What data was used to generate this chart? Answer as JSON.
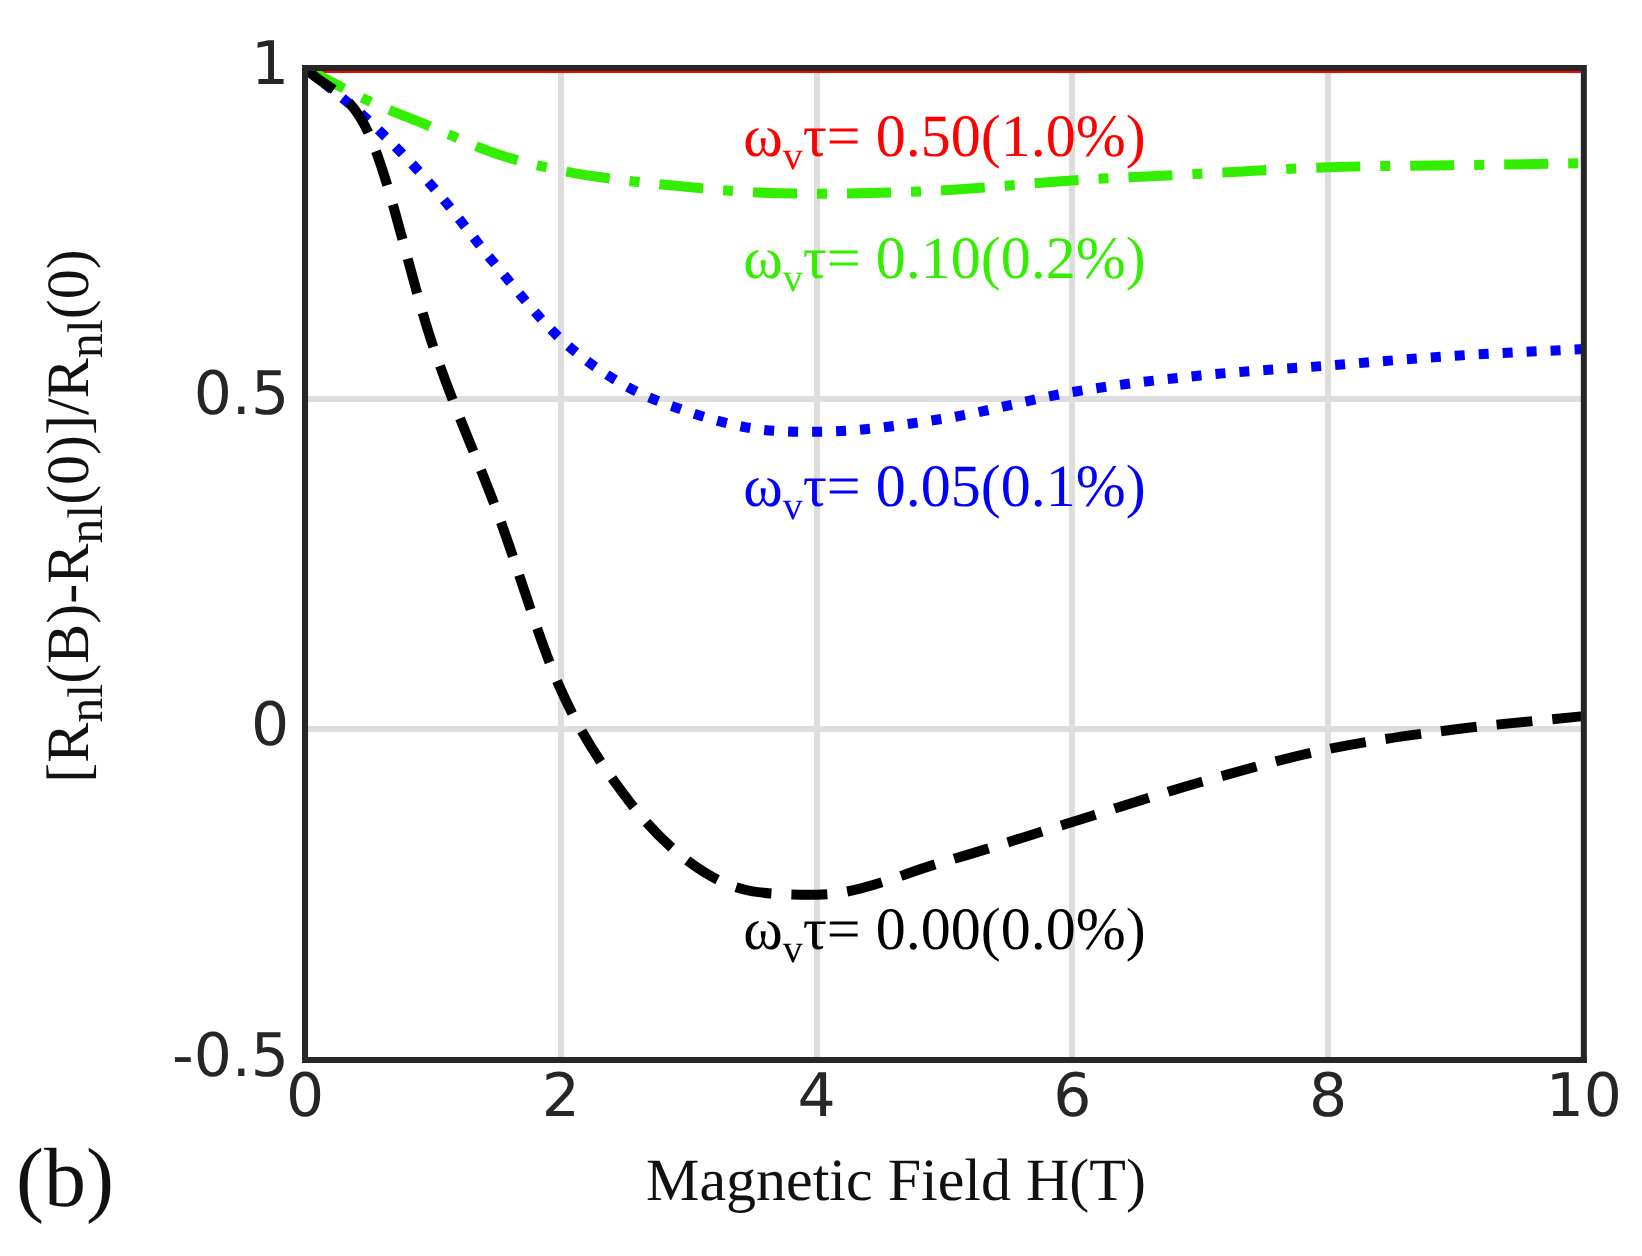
{
  "chart_data": {
    "type": "line",
    "xlabel": "Magnetic Field H(T)",
    "ylabel": "[R$_{nl}$(B)-R$_{nl}$(0)]/R$_{nl}$(0)",
    "x": [
      0,
      0.5,
      1,
      1.5,
      2,
      2.5,
      3,
      3.5,
      4,
      5,
      6,
      7,
      8,
      9,
      10
    ],
    "series": [
      {
        "name": "ω$_{v}$τ= 0.50(1.0%)",
        "color": "#ff0000",
        "line_style": "solid",
        "values": [
          1,
          1,
          1,
          1,
          1,
          1,
          1,
          1,
          1,
          1,
          1,
          1,
          1,
          1,
          1
        ]
      },
      {
        "name": "ω$_{v}$τ= 0.10(0.2%)",
        "color": "#33ee00",
        "line_style": "dashdot",
        "values": [
          1,
          0.95,
          0.91,
          0.87,
          0.845,
          0.83,
          0.82,
          0.812,
          0.81,
          0.815,
          0.83,
          0.84,
          0.85,
          0.853,
          0.856
        ]
      },
      {
        "name": "ω$_{v}$τ= 0.05(0.1%)",
        "color": "#0000ff",
        "line_style": "dotted",
        "values": [
          1,
          0.92,
          0.82,
          0.7,
          0.59,
          0.52,
          0.48,
          0.455,
          0.45,
          0.47,
          0.51,
          0.535,
          0.55,
          0.565,
          0.575
        ]
      },
      {
        "name": "ω$_{v}$τ= 0.00(0.0%)",
        "color": "#000000",
        "line_style": "dashed",
        "values": [
          1,
          0.9,
          0.58,
          0.33,
          0.06,
          -0.1,
          -0.2,
          -0.245,
          -0.25,
          -0.2,
          -0.14,
          -0.08,
          -0.03,
          0,
          0.02
        ]
      }
    ],
    "annotations": [
      "(b)"
    ],
    "xlim": [
      0,
      10
    ],
    "xticks": [
      0,
      2,
      4,
      6,
      8,
      10
    ],
    "ylim": [
      -0.5,
      1
    ],
    "yticks": [
      -0.5,
      0,
      0.5,
      1
    ],
    "grid": true,
    "legend": false,
    "marker": "none"
  }
}
